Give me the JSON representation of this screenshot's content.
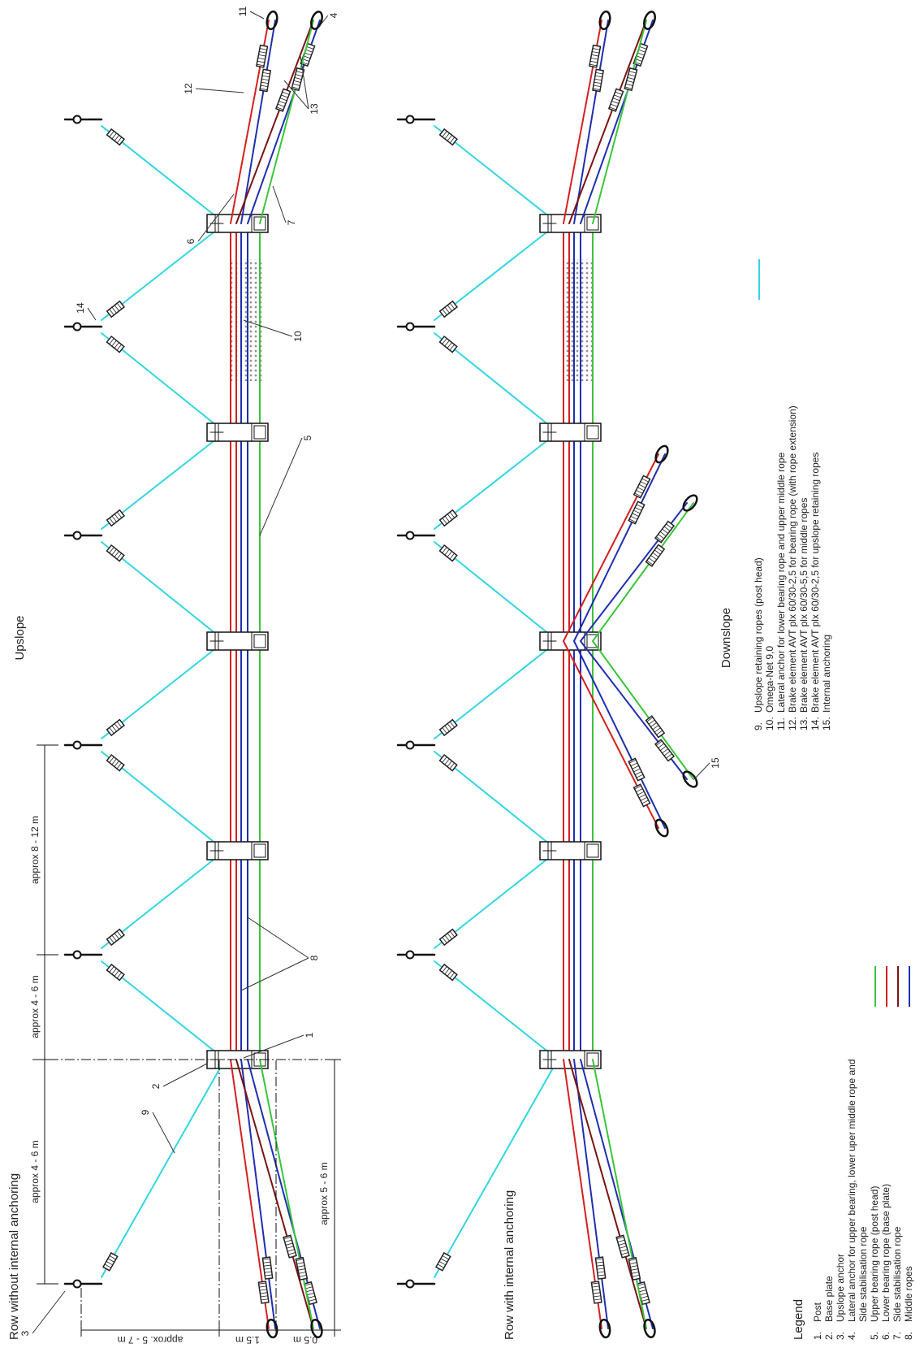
{
  "sections": [
    {
      "label": "Row without internal anchoring",
      "heading": "Upslope"
    },
    {
      "label": "Row with internal anchoring",
      "heading": "Downslope"
    }
  ],
  "dimensions": {
    "first_anchor": "approx 4 - 6 m",
    "post_to_anchor": "approx 4 - 6 m",
    "anchor_spacing": "approx 8 - 12 m",
    "lateral_length": "approx 5 - 6 m",
    "anchor_distance": "approx. 5 - 7 m",
    "upper_height": "1.5 m",
    "lower_height": "0.5 m"
  },
  "callouts": [
    "1",
    "2",
    "3",
    "4",
    "5",
    "6",
    "7",
    "8",
    "9",
    "10",
    "11",
    "12",
    "13",
    "14",
    "15"
  ],
  "legend": {
    "title": "Legend",
    "items": [
      {
        "number": "1.",
        "lines": [
          "Post"
        ]
      },
      {
        "number": "2.",
        "lines": [
          "Base plate"
        ]
      },
      {
        "number": "3.",
        "lines": [
          "Upslope anchor"
        ]
      },
      {
        "number": "4.",
        "lines": [
          "Lateral anchor for upper bearing, lower uper middle rope and",
          "Side stabilisation rope"
        ]
      },
      {
        "number": "5.",
        "lines": [
          "Upper bearing rope (post head)"
        ],
        "color": "#3cc43c"
      },
      {
        "number": "6.",
        "lines": [
          "Lower bearing rope (base plate)"
        ],
        "color": "#d42020"
      },
      {
        "number": "7.",
        "lines": [
          "Side stabilisation rope"
        ],
        "color": "#7a1414"
      },
      {
        "number": "8.",
        "lines": [
          "Middle ropes"
        ],
        "color": "#1f2fb0"
      },
      {
        "number": "9.",
        "lines": [
          "Upslope retaining ropes (post head)"
        ],
        "color": "#33d6e0"
      },
      {
        "number": "10.",
        "lines": [
          "Omega-Net 9,0"
        ]
      },
      {
        "number": "11.",
        "lines": [
          "Lateral anchor for lower bearing rope and upper middle rope"
        ]
      },
      {
        "number": "12.",
        "lines": [
          "Brake element AVT plx 60/30-2,5 for bearing rope (with rope extension)"
        ]
      },
      {
        "number": "13.",
        "lines": [
          "Brake element AVT plx 60/30-5,5 for middle ropes"
        ]
      },
      {
        "number": "14.",
        "lines": [
          "Brake element AVT plx 60/30-2,5 for upslope retaining ropes"
        ]
      },
      {
        "number": "15.",
        "lines": [
          "Internal anchoring"
        ]
      }
    ]
  }
}
